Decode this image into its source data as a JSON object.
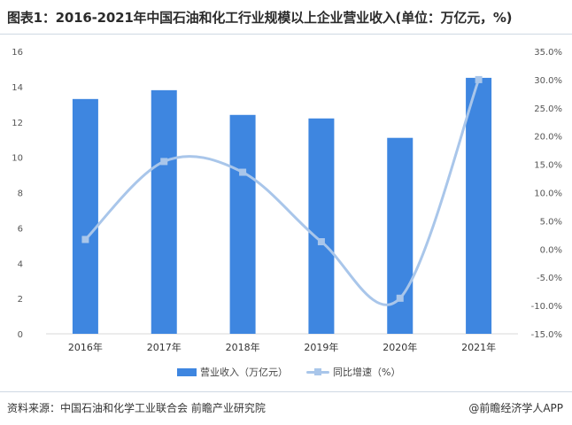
{
  "title": "图表1：2016-2021年中国石油和化工行业规模以上企业营业收入(单位：万亿元，%)",
  "legend": {
    "bar": "营业收入（万亿元）",
    "line": "同比增速（%）"
  },
  "source": "资料来源：中国石油和化学工业联合会 前瞻产业研究院",
  "credit": "@前瞻经济学人APP",
  "colors": {
    "bar": "#3e86e0",
    "line": "#a9c6ea"
  },
  "chart_data": {
    "type": "bar",
    "categories": [
      "2016年",
      "2017年",
      "2018年",
      "2019年",
      "2020年",
      "2021年"
    ],
    "series": [
      {
        "name": "营业收入（万亿元）",
        "type": "bar",
        "axis": "left",
        "values": [
          13.3,
          13.8,
          12.4,
          12.2,
          11.1,
          14.5
        ]
      },
      {
        "name": "同比增速（%）",
        "type": "line",
        "axis": "right",
        "values": [
          1.7,
          15.5,
          13.6,
          1.3,
          -8.7,
          30.0
        ]
      }
    ],
    "y_left": {
      "min": 0,
      "max": 16,
      "ticks": [
        "0",
        "2",
        "4",
        "6",
        "8",
        "10",
        "12",
        "14",
        "16"
      ]
    },
    "y_right": {
      "min": -15,
      "max": 35,
      "ticks": [
        "-15.0%",
        "-10.0%",
        "-5.0%",
        "0.0%",
        "5.0%",
        "10.0%",
        "15.0%",
        "20.0%",
        "25.0%",
        "30.0%",
        "35.0%"
      ]
    },
    "grid": false,
    "legend_position": "bottom"
  }
}
